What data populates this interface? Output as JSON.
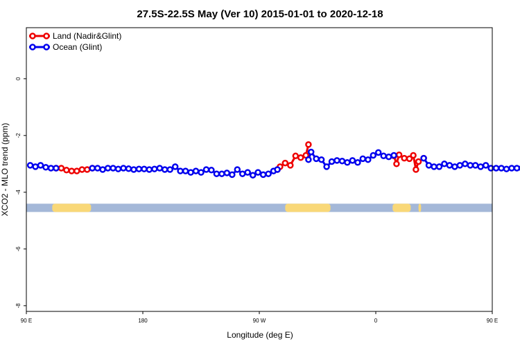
{
  "chart_data": {
    "type": "line",
    "title": "27.5S-22.5S May (Ver 10)   2015-01-01 to 2020-12-18",
    "xlabel": "Longitude (deg E)",
    "ylabel": "XCO2 - MLO trend (ppm)",
    "xlim": [
      90,
      450
    ],
    "ylim": [
      -8.2,
      1.8
    ],
    "x_ticks": [
      {
        "value": 90,
        "label": "90 E"
      },
      {
        "value": 180,
        "label": "180"
      },
      {
        "value": 270,
        "label": "90 W"
      },
      {
        "value": 360,
        "label": "0"
      },
      {
        "value": 450,
        "label": "90 E"
      },
      {
        "value": 540,
        "label": "180"
      }
    ],
    "y_ticks": [
      {
        "value": 0,
        "label": "0"
      },
      {
        "value": -2,
        "label": "-2"
      },
      {
        "value": -4,
        "label": "-4"
      },
      {
        "value": -6,
        "label": "-6"
      },
      {
        "value": -8,
        "label": "-8"
      }
    ],
    "legend": {
      "position": "top-left"
    },
    "land_mask": {
      "y": -4.55,
      "ocean_color": "#a4b8d8",
      "land_color": "#f9d878",
      "land_segments": [
        [
          110,
          140
        ],
        [
          290,
          325
        ],
        [
          373,
          387
        ],
        [
          393,
          395
        ],
        [
          491,
          522
        ]
      ]
    },
    "series": [
      {
        "name": "Land (Nadir&Glint)",
        "color": "#ee0000",
        "segments": [
          {
            "x": [
              113,
              117,
              121,
              125,
              129,
              133,
              137,
              141
            ],
            "y": [
              -3.15,
              -3.15,
              -3.22,
              -3.25,
              -3.25,
              -3.2,
              -3.2,
              -3.15
            ]
          },
          {
            "x": [
              284,
              286,
              290,
              294,
              298,
              302,
              306,
              308
            ],
            "y": [
              -3.2,
              -3.1,
              -2.97,
              -3.05,
              -2.72,
              -2.78,
              -2.7,
              -2.32
            ]
          },
          {
            "x": [
              374,
              376,
              378,
              382,
              386,
              389,
              391,
              393,
              397
            ],
            "y": [
              -2.72,
              -3.0,
              -2.68,
              -2.8,
              -2.82,
              -2.7,
              -3.2,
              -2.92,
              -2.8
            ]
          },
          {
            "x": [
              497,
              501,
              505,
              509,
              513,
              517,
              521,
              525
            ],
            "y": [
              -3.15,
              -3.15,
              -3.22,
              -3.25,
              -3.25,
              -3.2,
              -3.2,
              -3.15
            ]
          }
        ]
      },
      {
        "name": "Ocean (Glint)",
        "color": "#0000ee",
        "segments": [
          {
            "x": [
              93,
              97,
              101,
              105,
              109,
              113
            ],
            "y": [
              -3.05,
              -3.1,
              -3.05,
              -3.12,
              -3.15,
              -3.15
            ]
          },
          {
            "x": [
              141,
              145,
              149,
              153,
              157,
              161,
              165,
              169,
              173,
              177,
              181,
              185,
              189,
              193,
              197,
              201,
              205,
              209,
              213,
              217,
              221,
              225,
              229,
              233,
              237,
              241,
              245,
              249,
              253,
              257,
              261,
              265,
              269,
              273,
              277,
              281,
              284
            ],
            "y": [
              -3.15,
              -3.15,
              -3.2,
              -3.15,
              -3.15,
              -3.18,
              -3.15,
              -3.17,
              -3.2,
              -3.18,
              -3.18,
              -3.2,
              -3.18,
              -3.15,
              -3.2,
              -3.2,
              -3.1,
              -3.25,
              -3.25,
              -3.3,
              -3.25,
              -3.3,
              -3.2,
              -3.22,
              -3.35,
              -3.35,
              -3.32,
              -3.38,
              -3.2,
              -3.35,
              -3.3,
              -3.4,
              -3.3,
              -3.38,
              -3.35,
              -3.25,
              -3.2
            ]
          },
          {
            "x": [
              308,
              310,
              314,
              318,
              322,
              326,
              330,
              334,
              338,
              342,
              346,
              350,
              354,
              358,
              362,
              366,
              370,
              374
            ],
            "y": [
              -2.85,
              -2.58,
              -2.82,
              -2.85,
              -3.1,
              -2.92,
              -2.88,
              -2.9,
              -2.95,
              -2.88,
              -2.95,
              -2.82,
              -2.85,
              -2.7,
              -2.6,
              -2.72,
              -2.75,
              -2.7
            ]
          },
          {
            "x": [
              397,
              401,
              405,
              409,
              413,
              417,
              421,
              425,
              429,
              433,
              437,
              441,
              445,
              449,
              453,
              457,
              461,
              465,
              469,
              473,
              477,
              481,
              485,
              489,
              493,
              497
            ],
            "y": [
              -2.8,
              -3.05,
              -3.1,
              -3.1,
              -3.0,
              -3.05,
              -3.1,
              -3.05,
              -3.0,
              -3.05,
              -3.05,
              -3.1,
              -3.05,
              -3.15,
              -3.15,
              -3.15,
              -3.18,
              -3.15,
              -3.15,
              -3.15,
              -3.12,
              -3.15,
              -3.1,
              -3.15,
              -3.15,
              -3.15
            ]
          }
        ]
      }
    ]
  }
}
